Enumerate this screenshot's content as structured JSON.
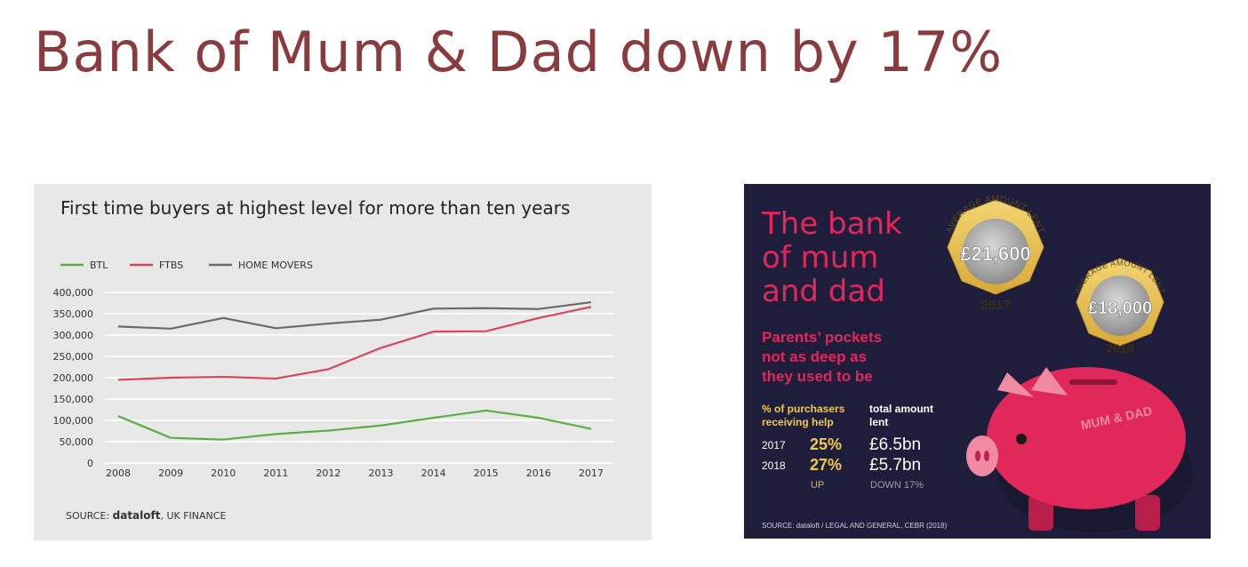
{
  "slide": {
    "title": "Bank of Mum & Dad down by 17%"
  },
  "chart_data": {
    "type": "line",
    "title": "First time buyers at highest level for more than ten years",
    "xlabel": "",
    "ylabel": "",
    "categories": [
      "2008",
      "2009",
      "2010",
      "2011",
      "2012",
      "2013",
      "2014",
      "2015",
      "2016",
      "2017"
    ],
    "ylim": [
      0,
      400000
    ],
    "yticks": [
      "0",
      "50,000",
      "100,000",
      "150,000",
      "200,000",
      "250,000",
      "300,000",
      "350,000",
      "400,000"
    ],
    "grid": true,
    "legend": "top-left",
    "series": [
      {
        "name": "BTL",
        "color": "#5cb043",
        "values": [
          110000,
          59000,
          55000,
          68000,
          76000,
          88000,
          106000,
          123000,
          106000,
          80000
        ]
      },
      {
        "name": "FTBS",
        "color": "#d8465c",
        "values": [
          195000,
          200000,
          202000,
          198000,
          220000,
          270000,
          308000,
          309000,
          340000,
          366000
        ]
      },
      {
        "name": "HOME MOVERS",
        "color": "#6b6b6b",
        "values": [
          320000,
          315000,
          340000,
          316000,
          327000,
          336000,
          362000,
          363000,
          361000,
          377000
        ]
      }
    ],
    "source_label": "SOURCE:",
    "source_brand": "dataloft",
    "source_rest": ", UK FINANCE"
  },
  "infographic": {
    "headline_lines": [
      "The bank",
      "of mum",
      "and dad"
    ],
    "sub_lines": [
      "Parents’ pockets",
      "not as deep as",
      "they used to be"
    ],
    "col1_header_lines": [
      "% of purchasers",
      "receiving help"
    ],
    "col2_header_lines": [
      "total amount",
      "lent"
    ],
    "rows": [
      {
        "year": "2017",
        "percent": "25%",
        "amount": "£6.5bn"
      },
      {
        "year": "2018",
        "percent": "27%",
        "amount": "£5.7bn"
      }
    ],
    "percent_note": "UP",
    "amount_note": "DOWN 17%",
    "coins": [
      {
        "caption": "AVERAGE AMOUNT LENT",
        "value": "£21,600",
        "year": "2017"
      },
      {
        "caption": "AVERAGE AMOUNT LENT",
        "value": "£18,000",
        "year": "2018"
      }
    ],
    "piggy_label": "MUM & DAD",
    "source": "SOURCE: dataloft / LEGAL AND GENERAL, CEBR (2018)",
    "colors": {
      "bg": "#1e1e3c",
      "pink": "#e0285a",
      "yellow": "#f2c94c",
      "coin_gold": "#e8c050",
      "coin_silver": "#a8a8a8"
    }
  }
}
